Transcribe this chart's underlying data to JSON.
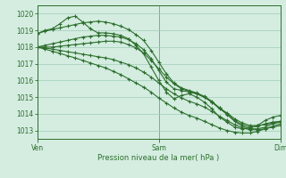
{
  "title": "Pression niveau de la mer( hPa )",
  "bg_color": "#d4ede0",
  "grid_color": "#a0ccb8",
  "line_color": "#2d6e2d",
  "ylim": [
    1012.5,
    1020.5
  ],
  "yticks": [
    1013,
    1014,
    1015,
    1016,
    1017,
    1018,
    1019,
    1020
  ],
  "xtick_labels": [
    "Ven",
    "Sam",
    "Dim"
  ],
  "xtick_positions": [
    0,
    16,
    32
  ],
  "series": [
    [
      1018.8,
      1019.0,
      1019.1,
      1019.4,
      1019.75,
      1019.85,
      1019.5,
      1019.1,
      1018.85,
      1018.85,
      1018.8,
      1018.7,
      1018.5,
      1018.1,
      1017.6,
      1016.8,
      1016.0,
      1015.3,
      1014.9,
      1015.1,
      1015.2,
      1015.0,
      1014.7,
      1014.3,
      1013.8,
      1013.5,
      1013.2,
      1013.1,
      1013.15,
      1013.3,
      1013.6,
      1013.8,
      1013.9
    ],
    [
      1018.0,
      1018.1,
      1018.2,
      1018.3,
      1018.4,
      1018.5,
      1018.6,
      1018.65,
      1018.7,
      1018.7,
      1018.65,
      1018.6,
      1018.45,
      1018.2,
      1017.85,
      1017.3,
      1016.6,
      1015.9,
      1015.5,
      1015.4,
      1015.3,
      1015.2,
      1015.0,
      1014.7,
      1014.3,
      1014.0,
      1013.6,
      1013.35,
      1013.2,
      1013.25,
      1013.4,
      1013.5,
      1013.55
    ],
    [
      1018.0,
      1018.0,
      1018.0,
      1018.05,
      1018.1,
      1018.15,
      1018.2,
      1018.25,
      1018.3,
      1018.35,
      1018.35,
      1018.3,
      1018.15,
      1017.95,
      1017.65,
      1017.2,
      1016.7,
      1016.2,
      1015.8,
      1015.5,
      1015.35,
      1015.2,
      1015.0,
      1014.7,
      1014.35,
      1014.05,
      1013.7,
      1013.45,
      1013.3,
      1013.3,
      1013.35,
      1013.45,
      1013.55
    ],
    [
      1018.0,
      1017.95,
      1017.88,
      1017.8,
      1017.72,
      1017.65,
      1017.57,
      1017.5,
      1017.42,
      1017.35,
      1017.25,
      1017.1,
      1016.95,
      1016.75,
      1016.5,
      1016.2,
      1015.85,
      1015.5,
      1015.2,
      1014.95,
      1014.75,
      1014.6,
      1014.4,
      1014.15,
      1013.85,
      1013.6,
      1013.35,
      1013.15,
      1013.05,
      1013.05,
      1013.1,
      1013.2,
      1013.3
    ],
    [
      1018.0,
      1017.88,
      1017.75,
      1017.62,
      1017.48,
      1017.35,
      1017.2,
      1017.05,
      1016.9,
      1016.75,
      1016.55,
      1016.35,
      1016.1,
      1015.85,
      1015.6,
      1015.3,
      1014.95,
      1014.65,
      1014.35,
      1014.1,
      1013.9,
      1013.75,
      1013.55,
      1013.35,
      1013.15,
      1013.0,
      1012.9,
      1012.85,
      1012.85,
      1012.95,
      1013.1,
      1013.25,
      1013.4
    ],
    [
      1018.8,
      1018.95,
      1019.05,
      1019.15,
      1019.25,
      1019.35,
      1019.45,
      1019.5,
      1019.55,
      1019.5,
      1019.4,
      1019.25,
      1019.05,
      1018.75,
      1018.4,
      1017.8,
      1017.1,
      1016.4,
      1015.85,
      1015.55,
      1015.4,
      1015.25,
      1015.05,
      1014.75,
      1014.35,
      1013.95,
      1013.55,
      1013.25,
      1013.1,
      1013.1,
      1013.2,
      1013.4,
      1013.5
    ]
  ]
}
